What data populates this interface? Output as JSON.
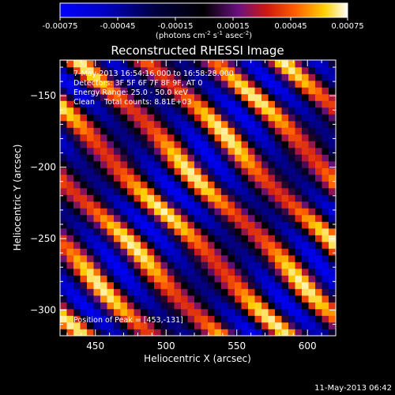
{
  "colorbar": {
    "ticks": [
      "-0.00075",
      "-0.00045",
      "-0.00015",
      "0.00015",
      "0.00045",
      "0.00075"
    ],
    "units_main": "(photons cm",
    "units_sup1": "-2",
    "units_mid": " s",
    "units_sup2": "-1",
    "units_end": " asec",
    "units_sup3": "-2",
    "units_close": ")"
  },
  "chart_data": {
    "type": "heatmap",
    "title": "Reconstructed RHESSI Image",
    "xlabel": "Heliocentric X (arcsec)",
    "ylabel": "Heliocentric Y (arcsec)",
    "xlim": [
      425,
      620
    ],
    "ylim": [
      -318,
      -125
    ],
    "xticks": [
      450,
      500,
      550,
      600
    ],
    "yticks": [
      -150,
      -200,
      -250,
      -300
    ],
    "colorbar_range": [
      -0.00075,
      0.00075
    ],
    "annotations": [
      "7-May-2013 16:54:16.000 to 16:58:28.000",
      "Detectors: 3F 5F 6F 7F 8F 9F, AT 0",
      "Energy Range: 25.0 - 50.0 keV",
      "Clean    Total counts: 8.81E+03"
    ],
    "peak_label": "Position of Peak = [453,-131]",
    "pattern": "diagonal stripes"
  },
  "footer": {
    "timestamp": "11-May-2013 06:42"
  }
}
